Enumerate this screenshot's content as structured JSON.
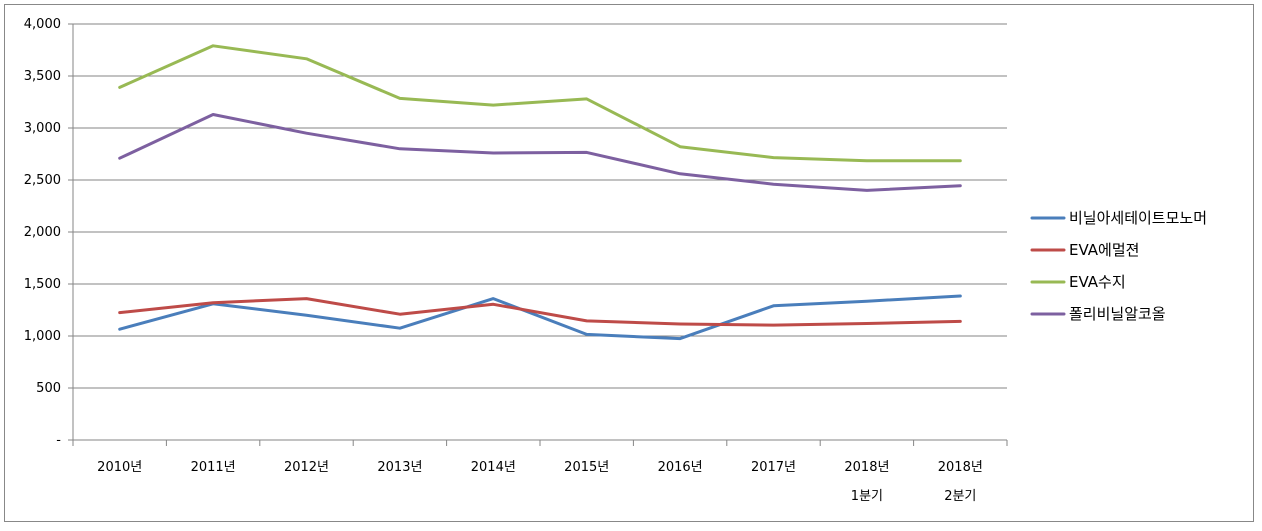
{
  "chart_data": {
    "type": "line",
    "title": "",
    "xlabel": "",
    "ylabel": "",
    "ylim": [
      0,
      4000
    ],
    "y_ticks": [
      {
        "value": 0,
        "label": "-"
      },
      {
        "value": 500,
        "label": "500"
      },
      {
        "value": 1000,
        "label": "1,000"
      },
      {
        "value": 1500,
        "label": "1,500"
      },
      {
        "value": 2000,
        "label": "2,000"
      },
      {
        "value": 2500,
        "label": "2,500"
      },
      {
        "value": 3000,
        "label": "3,000"
      },
      {
        "value": 3500,
        "label": "3,500"
      },
      {
        "value": 4000,
        "label": "4,000"
      }
    ],
    "categories": [
      "2010년",
      "2011년",
      "2012년",
      "2013년",
      "2014년",
      "2015년",
      "2016년",
      "2017년",
      "2018년 1분기",
      "2018년 2분기"
    ],
    "category_labels": [
      [
        "2010년"
      ],
      [
        "2011년"
      ],
      [
        "2012년"
      ],
      [
        "2013년"
      ],
      [
        "2014년"
      ],
      [
        "2015년"
      ],
      [
        "2016년"
      ],
      [
        "2017년"
      ],
      [
        "2018년",
        "1분기"
      ],
      [
        "2018년",
        "2분기"
      ]
    ],
    "grid": "horizontal",
    "legend_position": "right",
    "series": [
      {
        "name": "비닐아세테이트모노머",
        "color": "#4A7EBB",
        "values": [
          1065,
          1310,
          1200,
          1075,
          1360,
          1015,
          975,
          1290,
          1335,
          1385
        ]
      },
      {
        "name": "EVA에멀젼",
        "color": "#BE4B48",
        "values": [
          1225,
          1320,
          1360,
          1210,
          1305,
          1145,
          1115,
          1105,
          1120,
          1140
        ]
      },
      {
        "name": "EVA수지",
        "color": "#98B954",
        "values": [
          3390,
          3790,
          3665,
          3285,
          3220,
          3280,
          2820,
          2715,
          2685,
          2685
        ]
      },
      {
        "name": "폴리비닐알코올",
        "color": "#7D60A0",
        "values": [
          2710,
          3130,
          2950,
          2800,
          2760,
          2765,
          2560,
          2460,
          2400,
          2445
        ]
      }
    ]
  }
}
